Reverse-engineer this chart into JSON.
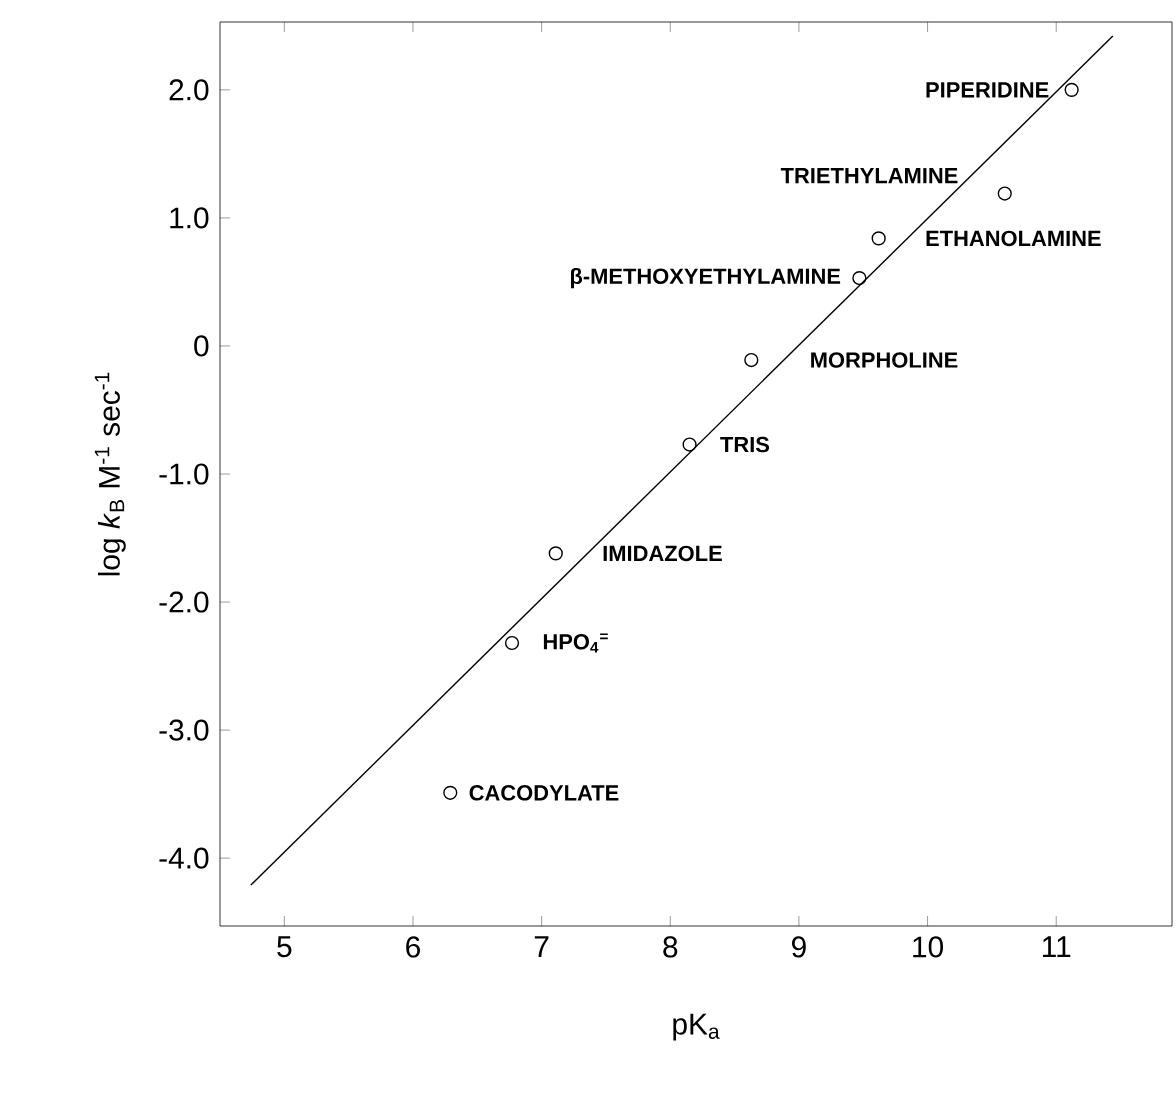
{
  "chart_data": {
    "type": "scatter",
    "xlabel": "pK$_{a}$",
    "ylabel": "log *k*$_{B}$ M$^{-1}$ sec$^{-1}$",
    "xlim": [
      4.5,
      11.9
    ],
    "ylim": [
      -4.53,
      2.53
    ],
    "xticks": [
      5,
      6,
      7,
      8,
      9,
      10,
      11
    ],
    "yticks": [
      {
        "value": 2,
        "label": "2.0"
      },
      {
        "value": 1,
        "label": "1.0"
      },
      0,
      {
        "value": -1,
        "label": "-1.0"
      },
      {
        "value": -2,
        "label": "-2.0"
      },
      {
        "value": -3,
        "label": "-3.0"
      },
      {
        "value": -4,
        "label": "-4.0"
      }
    ],
    "grid": false,
    "marker": "circle",
    "series": [
      {
        "type": "scatter",
        "color": "#000000",
        "x": [
          11.12,
          10.6,
          9.62,
          9.47,
          8.63,
          8.15,
          7.11,
          6.77,
          6.29
        ],
        "values": [
          2.0,
          1.19,
          0.84,
          0.53,
          -0.11,
          -0.77,
          -1.62,
          -2.32,
          -3.49
        ]
      },
      {
        "type": "line",
        "color": "#000000",
        "marker": "none",
        "x": [
          4.74,
          11.44
        ],
        "values": [
          -4.21,
          2.42
        ]
      }
    ],
    "annotations": [
      {
        "text": "PIPERIDINE",
        "x": 11.12,
        "y": 2.0
      },
      {
        "text": "TRIETHYLAMINE",
        "x": 10.6,
        "y": 1.19
      },
      {
        "text": "ETHANOLAMINE",
        "x": 9.62,
        "y": 0.84
      },
      {
        "text": "β-METHOXYETHYLAMINE",
        "x": 9.47,
        "y": 0.53
      },
      {
        "text": "MORPHOLINE",
        "x": 8.63,
        "y": -0.11
      },
      {
        "text": "TRIS",
        "x": 8.15,
        "y": -0.77
      },
      {
        "text": "IMIDAZOLE",
        "x": 7.11,
        "y": -1.62
      },
      {
        "text": "HPO$_{4}$$^{=}$",
        "x": 6.77,
        "y": -2.32
      },
      {
        "text": "CACODYLATE",
        "x": 6.29,
        "y": -3.49
      }
    ]
  }
}
